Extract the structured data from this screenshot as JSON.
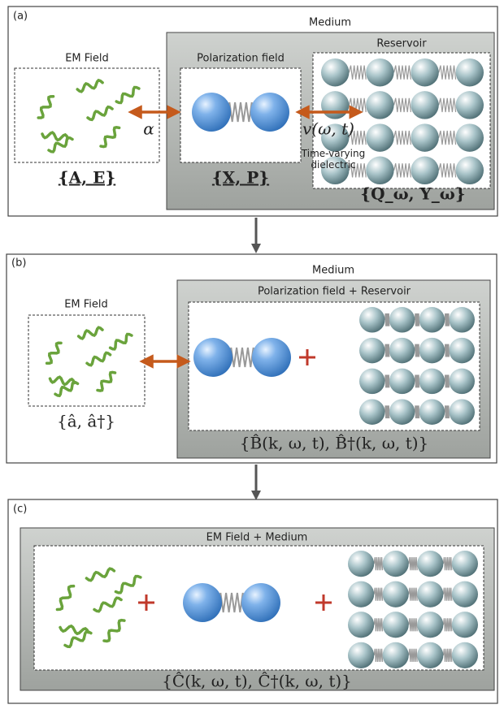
{
  "panel_a": {
    "label": "(a)",
    "medium": "Medium",
    "em_field": "EM Field",
    "polarization": "Polarization field",
    "reservoir": "Reservoir",
    "coupling": "α",
    "coupling_v": "v(ω, t)",
    "note": "Time-varying dielectric",
    "em_vars": "{A, E}",
    "pol_vars": "{X, P}",
    "res_vars": "{Q_ω, Y_ω}"
  },
  "panel_b": {
    "label": "(b)",
    "medium": "Medium",
    "em_field": "EM Field",
    "pol_res": "Polarization field + Reservoir",
    "em_vars": "{â, â†}",
    "medium_vars": "{B̂(k, ω, t), B̂†(k, ω, t)}"
  },
  "panel_c": {
    "label": "(c)",
    "combined": "EM Field + Medium",
    "vars": "{Ĉ(k, ω, t), Ĉ†(k, ω, t)}"
  }
}
